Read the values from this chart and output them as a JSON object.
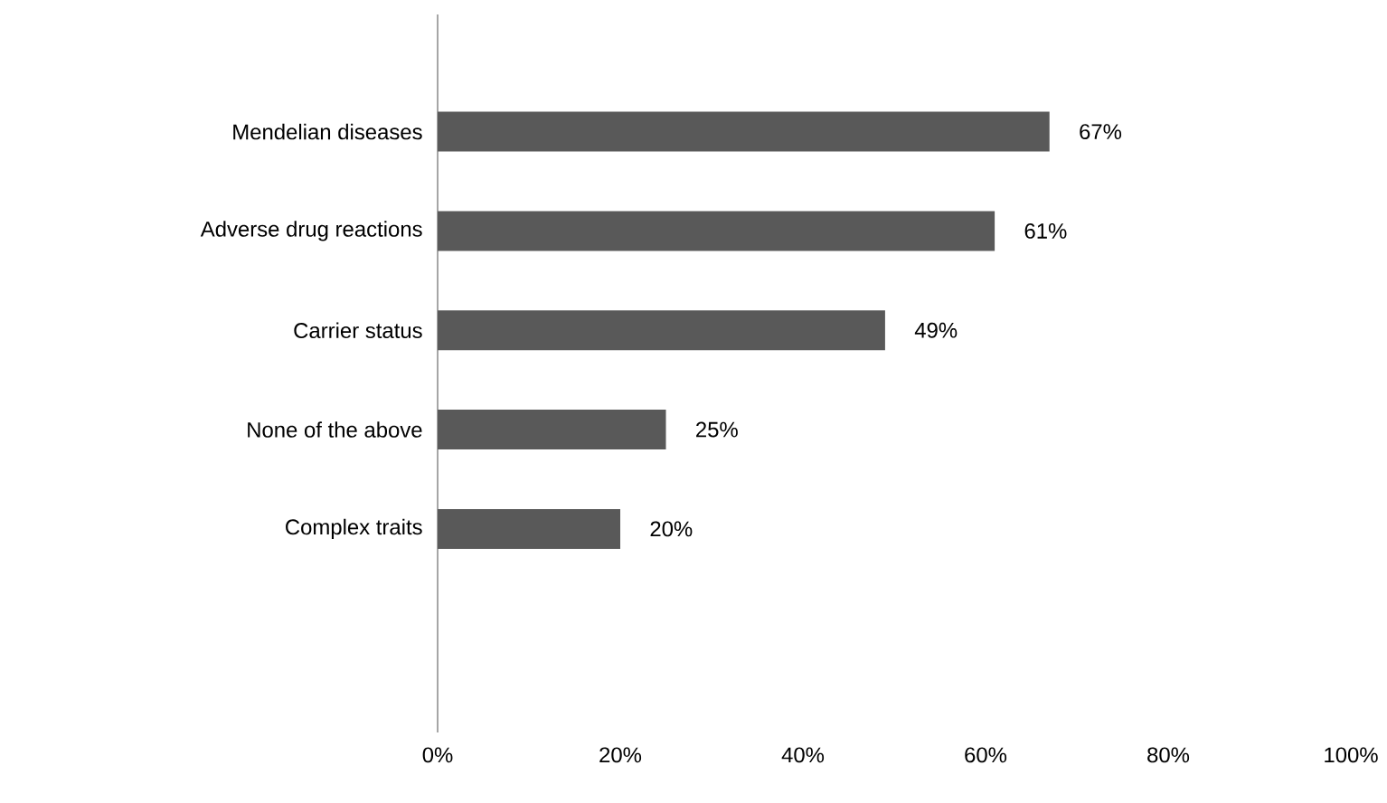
{
  "chart_data": {
    "type": "bar",
    "orientation": "horizontal",
    "categories": [
      "Mendelian diseases",
      "Adverse drug reactions",
      "Carrier status",
      "None of the above",
      "Complex traits"
    ],
    "values": [
      67,
      61,
      49,
      25,
      20
    ],
    "value_labels": [
      "67%",
      "61%",
      "49%",
      "25%",
      "20%"
    ],
    "color": "#595959",
    "xlim": [
      0,
      100
    ],
    "xticks": [
      {
        "value": 0,
        "label": "0%"
      },
      {
        "value": 20,
        "label": "20%"
      },
      {
        "value": 40,
        "label": "40%"
      },
      {
        "value": 60,
        "label": "60%"
      },
      {
        "value": 80,
        "label": "80%"
      },
      {
        "value": 100,
        "label": "100%"
      }
    ],
    "grid": false
  }
}
